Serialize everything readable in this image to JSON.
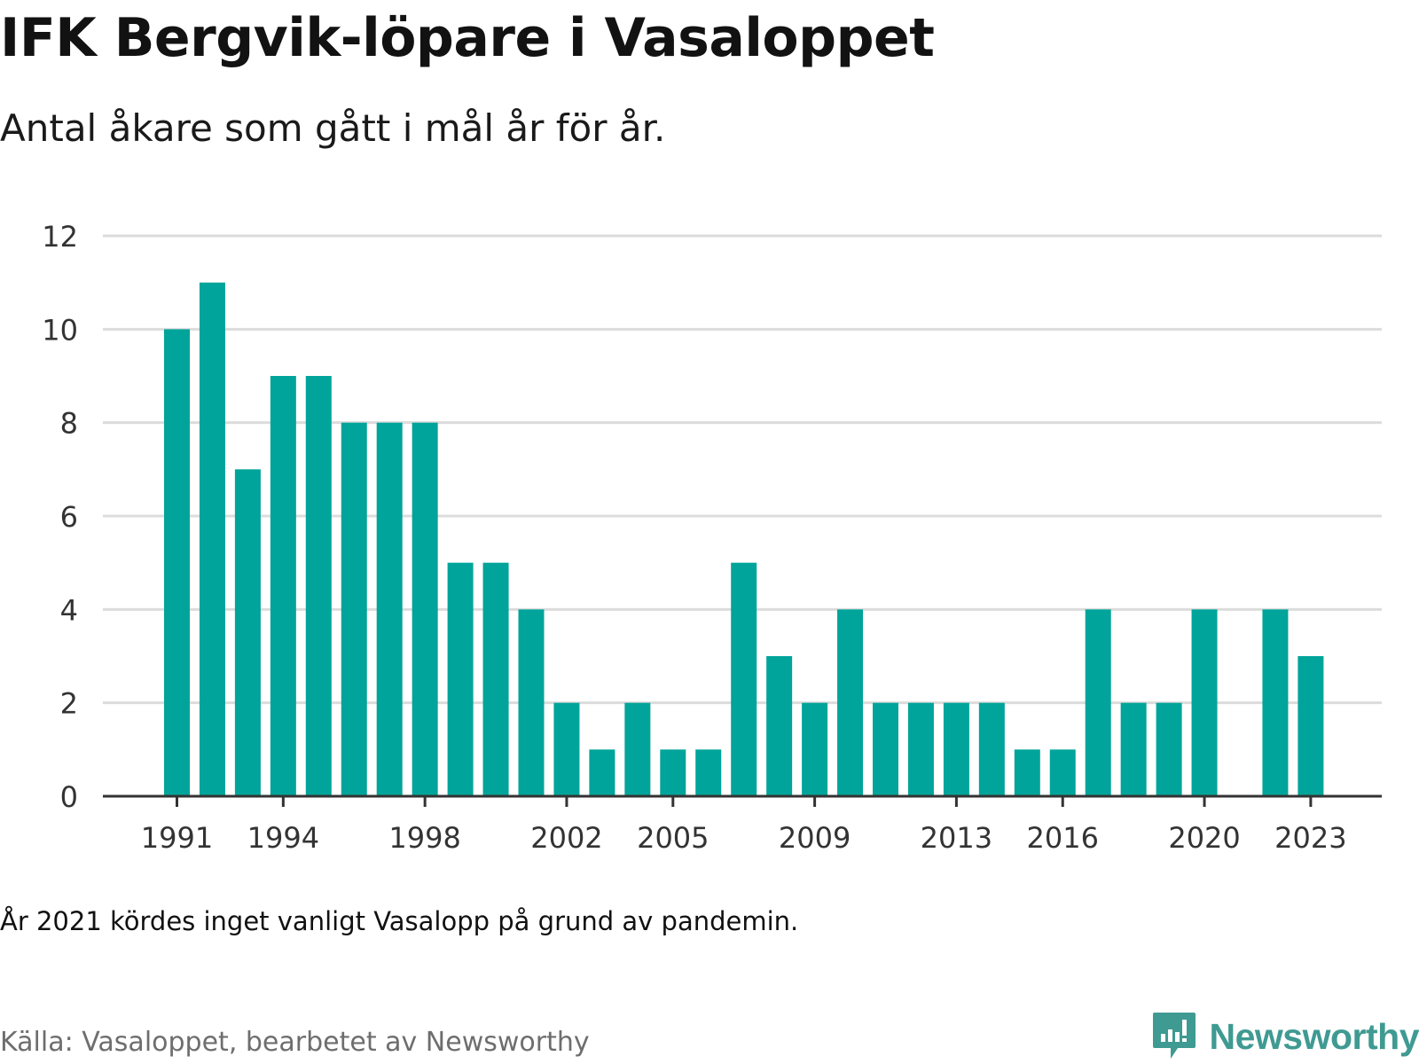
{
  "title": "IFK Bergvik-löpare i Vasaloppet",
  "subtitle": "Antal åkare som gått i mål år för år.",
  "note": "År 2021 kördes inget vanligt Vasalopp på grund av pandemin.",
  "source": "Källa: Vasaloppet, bearbetet av Newsworthy",
  "brand": "Newsworthy",
  "colors": {
    "bar": "#00A49A",
    "grid": "#dcdcdc",
    "axis": "#333333",
    "brand": "#3f9a92"
  },
  "chart_data": {
    "type": "bar",
    "title": "IFK Bergvik-löpare i Vasaloppet",
    "subtitle": "Antal åkare som gått i mål år för år.",
    "xlabel": "",
    "ylabel": "",
    "ylim": [
      0,
      12
    ],
    "yticks": [
      0,
      2,
      4,
      6,
      8,
      10,
      12
    ],
    "xtick_labels": [
      "1991",
      "1994",
      "1998",
      "2002",
      "2005",
      "2009",
      "2013",
      "2016",
      "2020",
      "2023"
    ],
    "grid": true,
    "legend": "none",
    "x": [
      1991,
      1992,
      1993,
      1994,
      1995,
      1996,
      1997,
      1998,
      1999,
      2000,
      2001,
      2002,
      2003,
      2004,
      2005,
      2006,
      2007,
      2008,
      2009,
      2010,
      2011,
      2012,
      2013,
      2014,
      2015,
      2016,
      2017,
      2018,
      2019,
      2020,
      2021,
      2022,
      2023
    ],
    "values": [
      10,
      11,
      7,
      9,
      9,
      8,
      8,
      8,
      5,
      5,
      4,
      2,
      1,
      2,
      1,
      1,
      5,
      3,
      2,
      4,
      2,
      2,
      2,
      2,
      1,
      1,
      4,
      2,
      2,
      4,
      null,
      4,
      3
    ]
  }
}
